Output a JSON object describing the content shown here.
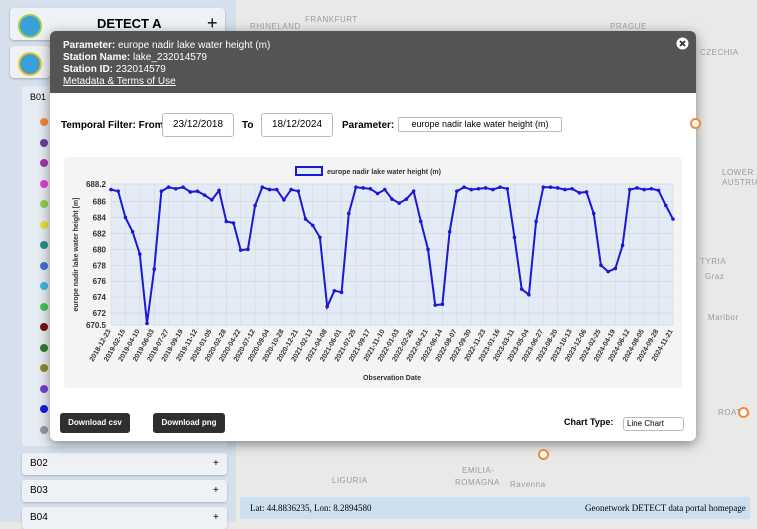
{
  "sidebar": {
    "title": "DETECT A",
    "add": "+",
    "groups": [
      "B01",
      "B02",
      "B03",
      "B04"
    ],
    "expand": "+"
  },
  "map_labels": [
    "RHINELAND",
    "FRANKFURT",
    "PRAGUE",
    "CZECHIA",
    "LOWER",
    "AUSTRIA",
    "TYRIA",
    "Graz",
    "Maribor",
    "ROATIA",
    "LIGURIA",
    "EMILIA-",
    "ROMAGNA",
    "Ravenna"
  ],
  "modal": {
    "param_label": "Parameter:",
    "param": "europe nadir lake water height (m)",
    "station_name_label": "Station Name:",
    "station_name": "lake_232014579",
    "station_id_label": "Station ID:",
    "station_id": "232014579",
    "metadata_link": "Metadata & Terms of Use",
    "filter_label": "Temporal Filter: From",
    "from": "23/12/2018",
    "to_label": "To",
    "to": "18/12/2024",
    "parameter_label": "Parameter:",
    "parameter_select": "europe nadir lake water height (m)",
    "download_csv": "Download csv",
    "download_png": "Download png",
    "chart_type_label": "Chart Type:",
    "chart_type": "Line Chart"
  },
  "footer": {
    "coords": "Lat: 44.8836235, Lon: 8.2894580",
    "link": "Geonetwork DETECT data portal homepage"
  },
  "chart_data": {
    "type": "line",
    "x_label": "Observation Date",
    "y_label": "europe nadir lake water height [m]",
    "categories": [
      "2018-12-23",
      null,
      "2019-02-15",
      null,
      "2019-04-10",
      null,
      "2019-06-03",
      null,
      "2019-07-27",
      null,
      "2019-09-19",
      null,
      "2019-11-12",
      null,
      "2020-01-05",
      null,
      "2020-02-28",
      null,
      "2020-04-22",
      null,
      "2020-07-12",
      null,
      "2020-09-04",
      null,
      "2020-10-28",
      null,
      "2020-12-21",
      null,
      "2021-02-13",
      null,
      "2021-04-08",
      null,
      "2021-06-01",
      null,
      "2021-07-25",
      null,
      "2021-09-17",
      null,
      "2021-11-10",
      null,
      "2022-01-03",
      null,
      "2022-02-26",
      null,
      "2022-04-21",
      null,
      "2022-06-14",
      null,
      "2022-08-07",
      null,
      "2022-09-30",
      null,
      "2022-11-23",
      null,
      "2023-01-16",
      null,
      "2023-03-11",
      null,
      "2023-05-04",
      null,
      "2023-06-27",
      null,
      "2023-08-20",
      null,
      "2023-10-13",
      null,
      "2023-12-06",
      null,
      "2024-02-25",
      null,
      "2024-04-19",
      null,
      "2024-06-12",
      null,
      "2024-08-05",
      null,
      "2024-09-28",
      null,
      "2024-11-21"
    ],
    "series": [
      {
        "name": "europe nadir lake water height (m)",
        "color": "#1a1ad6",
        "values": [
          687.5,
          687.3,
          684.0,
          682.2,
          679.4,
          670.7,
          677.5,
          687.3,
          687.8,
          687.6,
          687.8,
          687.2,
          687.3,
          686.8,
          686.2,
          687.4,
          683.5,
          683.3,
          679.9,
          680.0,
          685.5,
          687.8,
          687.5,
          687.5,
          686.2,
          687.5,
          687.3,
          683.8,
          683.0,
          681.5,
          672.8,
          674.8,
          674.6,
          684.5,
          687.8,
          687.7,
          687.6,
          687.0,
          687.5,
          686.3,
          685.8,
          686.3,
          687.3,
          683.5,
          680.0,
          673.0,
          673.1,
          682.2,
          687.3,
          687.8,
          687.5,
          687.6,
          687.7,
          687.5,
          687.8,
          687.6,
          681.5,
          675.0,
          674.3,
          683.5,
          687.8,
          687.8,
          687.7,
          687.5,
          687.6,
          687.1,
          687.2,
          684.5,
          678.0,
          677.2,
          677.6,
          680.5,
          687.5,
          687.7,
          687.5,
          687.6,
          687.4,
          685.5,
          683.8
        ]
      }
    ],
    "ylim": [
      670.5,
      688.2
    ],
    "yticks": [
      670.5,
      672,
      674,
      676,
      678,
      680,
      682,
      684,
      686,
      688.2
    ],
    "grid": true,
    "legend": "top"
  }
}
